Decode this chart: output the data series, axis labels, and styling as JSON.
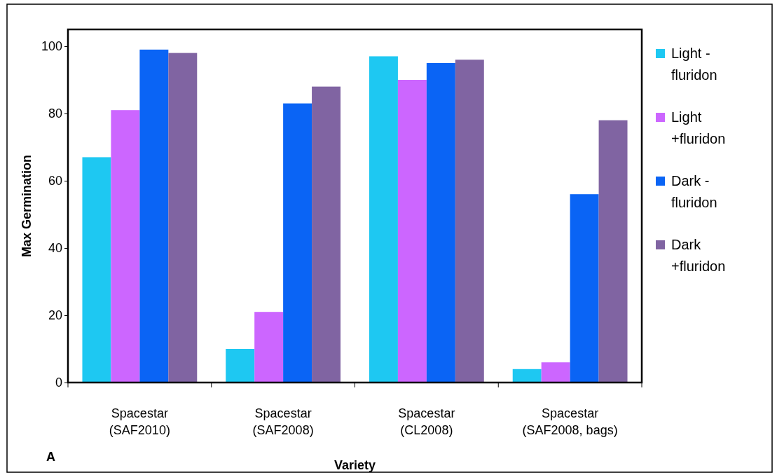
{
  "chart_data": {
    "type": "bar",
    "xlabel": "Variety",
    "ylabel": "Max Germination",
    "categories": [
      "Spacestar (SAF2010)",
      "Spacestar (SAF2008)",
      "Spacestar (CL2008)",
      "Spacestar (SAF2008, bags)"
    ],
    "series": [
      {
        "name": "Light - fluridon",
        "color": "#1ec8f2",
        "values": [
          67,
          10,
          97,
          4
        ]
      },
      {
        "name": "Light +fluridon",
        "color": "#cc66ff",
        "values": [
          81,
          21,
          90,
          6
        ]
      },
      {
        "name": "Dark - fluridon",
        "color": "#0a64f5",
        "values": [
          99,
          83,
          95,
          56
        ]
      },
      {
        "name": "Dark +fluridon",
        "color": "#8064a2",
        "values": [
          98,
          88,
          96,
          78
        ]
      }
    ],
    "ylim": [
      0,
      105
    ],
    "yticks": [
      0,
      20,
      40,
      60,
      80,
      100
    ],
    "grid": false,
    "legend": "right",
    "annotations": [
      "A"
    ]
  }
}
